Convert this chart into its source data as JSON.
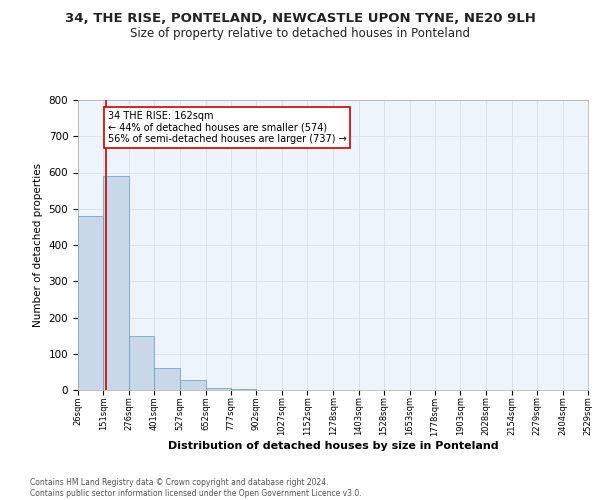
{
  "title": "34, THE RISE, PONTELAND, NEWCASTLE UPON TYNE, NE20 9LH",
  "subtitle": "Size of property relative to detached houses in Ponteland",
  "xlabel": "Distribution of detached houses by size in Ponteland",
  "ylabel": "Number of detached properties",
  "bin_edges": [
    26,
    151,
    276,
    401,
    527,
    652,
    777,
    902,
    1027,
    1152,
    1278,
    1403,
    1528,
    1653,
    1778,
    1903,
    2028,
    2154,
    2279,
    2404,
    2529
  ],
  "bar_heights": [
    480,
    590,
    148,
    62,
    28,
    5,
    2,
    1,
    0,
    0,
    0,
    0,
    0,
    0,
    0,
    0,
    0,
    0,
    0,
    0
  ],
  "bar_color": "#c8d8e8",
  "bar_edge_color": "#6699bb",
  "property_line_x": 162,
  "property_line_color": "#cc0000",
  "ylim": [
    0,
    800
  ],
  "annotation_text": "34 THE RISE: 162sqm\n← 44% of detached houses are smaller (574)\n56% of semi-detached houses are larger (737) →",
  "annotation_box_color": "#ffffff",
  "annotation_box_edge_color": "#cc0000",
  "grid_color": "#d0dce8",
  "background_color": "#eef4fb",
  "footer_line1": "Contains HM Land Registry data © Crown copyright and database right 2024.",
  "footer_line2": "Contains public sector information licensed under the Open Government Licence v3.0."
}
